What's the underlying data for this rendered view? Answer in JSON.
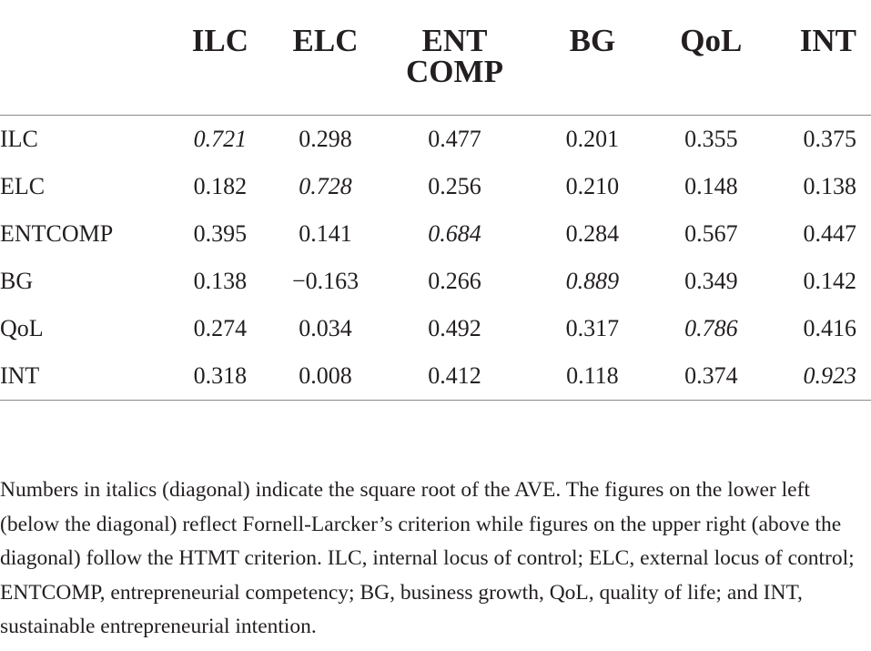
{
  "table": {
    "headers": [
      {
        "lines": [
          "ILC"
        ]
      },
      {
        "lines": [
          "ELC"
        ]
      },
      {
        "lines": [
          "ENT",
          "COMP"
        ]
      },
      {
        "lines": [
          "BG"
        ]
      },
      {
        "lines": [
          "QoL"
        ]
      },
      {
        "lines": [
          "INT"
        ]
      }
    ],
    "rows": [
      {
        "label": "ILC",
        "cells": [
          "0.721",
          "0.298",
          "0.477",
          "0.201",
          "0.355",
          "0.375"
        ],
        "diag": 0
      },
      {
        "label": "ELC",
        "cells": [
          "0.182",
          "0.728",
          "0.256",
          "0.210",
          "0.148",
          "0.138"
        ],
        "diag": 1
      },
      {
        "label": "ENTCOMP",
        "cells": [
          "0.395",
          "0.141",
          "0.684",
          "0.284",
          "0.567",
          "0.447"
        ],
        "diag": 2
      },
      {
        "label": "BG",
        "cells": [
          "0.138",
          "−0.163",
          "0.266",
          "0.889",
          "0.349",
          "0.142"
        ],
        "diag": 3
      },
      {
        "label": "QoL",
        "cells": [
          "0.274",
          "0.034",
          "0.492",
          "0.317",
          "0.786",
          "0.416"
        ],
        "diag": 4
      },
      {
        "label": "INT",
        "cells": [
          "0.318",
          "0.008",
          "0.412",
          "0.118",
          "0.374",
          "0.923"
        ],
        "diag": 5
      }
    ]
  },
  "footnote": "Numbers in italics (diagonal) indicate the square root of the AVE. The figures on the lower left (below the diagonal) reflect Fornell-Larcker’s criterion while figures on the upper right (above the diagonal) follow the HTMT criterion. ILC, internal locus of control; ELC, external locus of control; ENTCOMP, entrepreneurial competency; BG, business growth, QoL, quality of life; and INT, sustainable entrepreneurial intention."
}
